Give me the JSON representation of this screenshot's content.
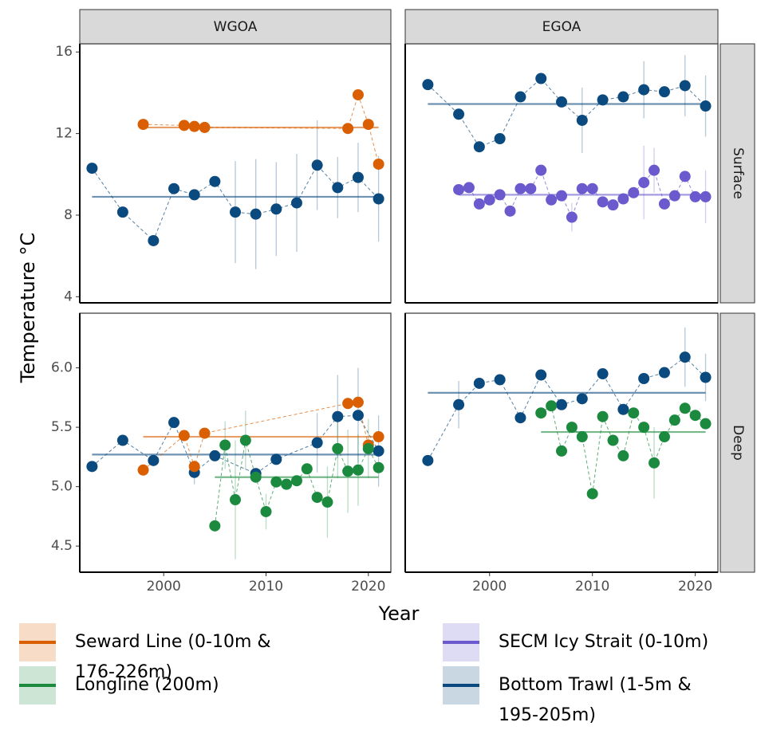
{
  "facets": {
    "columns": [
      "WGOA",
      "EGOA"
    ],
    "rows": [
      "Surface",
      "Deep"
    ]
  },
  "x_label": "Year",
  "y_label": "Temperature °C",
  "chart_data": [
    {
      "type": "scatter",
      "xlim": [
        1991.8,
        2022.2
      ],
      "ylim": [
        3.7,
        16.4
      ],
      "yticks": [
        4,
        8,
        12,
        16
      ],
      "series": [
        {
          "name": "Bottom Trawl (1-5m & 195-205m)",
          "color": "#0b4a7e",
          "mean": 8.9,
          "x": [
            1993,
            1996,
            1999,
            2001,
            2003,
            2005,
            2007,
            2009,
            2011,
            2013,
            2015,
            2017,
            2019,
            2021
          ],
          "values": [
            10.3,
            8.15,
            6.75,
            9.3,
            9.0,
            9.65,
            8.15,
            8.05,
            8.3,
            8.6,
            10.45,
            9.35,
            9.85,
            8.8
          ],
          "errors": [
            null,
            null,
            null,
            null,
            null,
            null,
            2.5,
            2.7,
            2.3,
            2.4,
            2.2,
            1.5,
            1.7,
            2.1
          ]
        },
        {
          "name": "Seward Line (0-10m & 176-226m)",
          "color": "#d95f02",
          "mean": 12.3,
          "x": [
            1998,
            2002,
            2003,
            2004,
            2018,
            2019,
            2020,
            2021
          ],
          "values": [
            12.45,
            12.4,
            12.35,
            12.3,
            12.25,
            13.9,
            12.45,
            10.5
          ]
        }
      ]
    },
    {
      "type": "scatter",
      "xlim": [
        1991.8,
        2022.2
      ],
      "ylim": [
        3.7,
        16.4
      ],
      "series": [
        {
          "name": "Bottom Trawl (1-5m & 195-205m)",
          "color": "#0b4a7e",
          "mean": 13.45,
          "x": [
            1994,
            1997,
            1999,
            2001,
            2003,
            2005,
            2007,
            2009,
            2011,
            2013,
            2015,
            2017,
            2019,
            2021
          ],
          "values": [
            14.4,
            12.95,
            11.35,
            11.75,
            13.8,
            14.7,
            13.55,
            12.65,
            13.65,
            13.8,
            14.15,
            14.05,
            14.35,
            13.35
          ],
          "errors": [
            null,
            null,
            null,
            null,
            null,
            null,
            null,
            1.6,
            null,
            null,
            1.4,
            null,
            1.5,
            1.5
          ]
        },
        {
          "name": "SECM Icy Strait (0-10m)",
          "color": "#6a5acd",
          "mean": 9.0,
          "x": [
            1997,
            1998,
            1999,
            2000,
            2001,
            2002,
            2003,
            2004,
            2005,
            2006,
            2007,
            2008,
            2009,
            2010,
            2011,
            2012,
            2013,
            2014,
            2015,
            2016,
            2017,
            2018,
            2019,
            2020,
            2021
          ],
          "values": [
            9.25,
            9.35,
            8.55,
            8.75,
            9.0,
            8.2,
            9.3,
            9.3,
            10.2,
            8.75,
            8.95,
            7.9,
            9.3,
            9.3,
            8.65,
            8.5,
            8.8,
            9.1,
            9.6,
            10.2,
            8.55,
            8.95,
            9.9,
            8.9,
            8.9
          ],
          "errors": [
            null,
            null,
            null,
            null,
            null,
            null,
            null,
            null,
            null,
            null,
            null,
            0.7,
            null,
            null,
            null,
            null,
            null,
            null,
            1.8,
            1.1,
            null,
            null,
            null,
            null,
            1.3
          ]
        }
      ]
    },
    {
      "type": "scatter",
      "xlim": [
        1991.8,
        2022.2
      ],
      "ylim": [
        4.28,
        6.46
      ],
      "xticks": [
        2000,
        2010,
        2020
      ],
      "yticks": [
        {
          "value": 4.5,
          "label": "4.5"
        },
        {
          "value": 5.0,
          "label": "5.0"
        },
        {
          "value": 5.5,
          "label": "5.5"
        },
        {
          "value": 6.0,
          "label": "6.0"
        }
      ],
      "series": [
        {
          "name": "Bottom Trawl (1-5m & 195-205m)",
          "color": "#0b4a7e",
          "mean": 5.27,
          "x": [
            1993,
            1996,
            1999,
            2001,
            2003,
            2005,
            2009,
            2011,
            2015,
            2017,
            2019,
            2021
          ],
          "values": [
            5.17,
            5.39,
            5.22,
            5.54,
            5.12,
            5.26,
            5.11,
            5.23,
            5.37,
            5.59,
            5.6,
            5.3
          ],
          "errors": [
            null,
            null,
            null,
            null,
            0.1,
            null,
            null,
            null,
            0.25,
            0.35,
            0.4,
            0.3
          ]
        },
        {
          "name": "Seward Line (0-10m & 176-226m)",
          "color": "#d95f02",
          "mean": 5.42,
          "x": [
            1998,
            2002,
            2003,
            2004,
            2018,
            2019,
            2020,
            2021
          ],
          "values": [
            5.14,
            5.43,
            5.17,
            5.45,
            5.7,
            5.71,
            5.35,
            5.42
          ]
        },
        {
          "name": "Longline (200m)",
          "color": "#1b8a3e",
          "mean": 5.08,
          "x": [
            2005,
            2006,
            2007,
            2008,
            2009,
            2010,
            2011,
            2012,
            2013,
            2014,
            2015,
            2016,
            2017,
            2018,
            2019,
            2020,
            2021
          ],
          "values": [
            4.67,
            5.35,
            4.89,
            5.39,
            5.08,
            4.79,
            5.04,
            5.02,
            5.05,
            5.15,
            4.91,
            4.87,
            5.32,
            5.13,
            5.14,
            5.32,
            5.16
          ],
          "errors": [
            null,
            0.2,
            0.5,
            0.25,
            null,
            0.15,
            null,
            null,
            null,
            null,
            null,
            0.3,
            0.25,
            0.35,
            0.3,
            0.25,
            null
          ]
        }
      ]
    },
    {
      "type": "scatter",
      "xlim": [
        1991.8,
        2022.2
      ],
      "ylim": [
        4.28,
        6.46
      ],
      "xticks": [
        2000,
        2010,
        2020
      ],
      "series": [
        {
          "name": "Bottom Trawl (1-5m & 195-205m)",
          "color": "#0b4a7e",
          "mean": 5.79,
          "x": [
            1994,
            1997,
            1999,
            2001,
            2003,
            2005,
            2007,
            2009,
            2011,
            2013,
            2015,
            2017,
            2019,
            2021
          ],
          "values": [
            5.22,
            5.69,
            5.87,
            5.9,
            5.58,
            5.94,
            5.69,
            5.74,
            5.95,
            5.65,
            5.91,
            5.96,
            6.09,
            5.92
          ],
          "errors": [
            null,
            0.2,
            null,
            null,
            null,
            null,
            null,
            null,
            null,
            null,
            null,
            null,
            0.25,
            0.2
          ]
        },
        {
          "name": "Longline (200m)",
          "color": "#1b8a3e",
          "mean": 5.46,
          "x": [
            2005,
            2006,
            2007,
            2008,
            2009,
            2010,
            2011,
            2012,
            2013,
            2014,
            2015,
            2016,
            2017,
            2018,
            2019,
            2020,
            2021
          ],
          "values": [
            5.62,
            5.68,
            5.3,
            5.5,
            5.42,
            4.94,
            5.59,
            5.39,
            5.26,
            5.62,
            5.5,
            5.2,
            5.42,
            5.56,
            5.66,
            5.6,
            5.53
          ],
          "errors": [
            null,
            null,
            null,
            null,
            null,
            null,
            null,
            null,
            null,
            null,
            null,
            0.3,
            null,
            null,
            null,
            null,
            null
          ]
        }
      ]
    }
  ]
}
